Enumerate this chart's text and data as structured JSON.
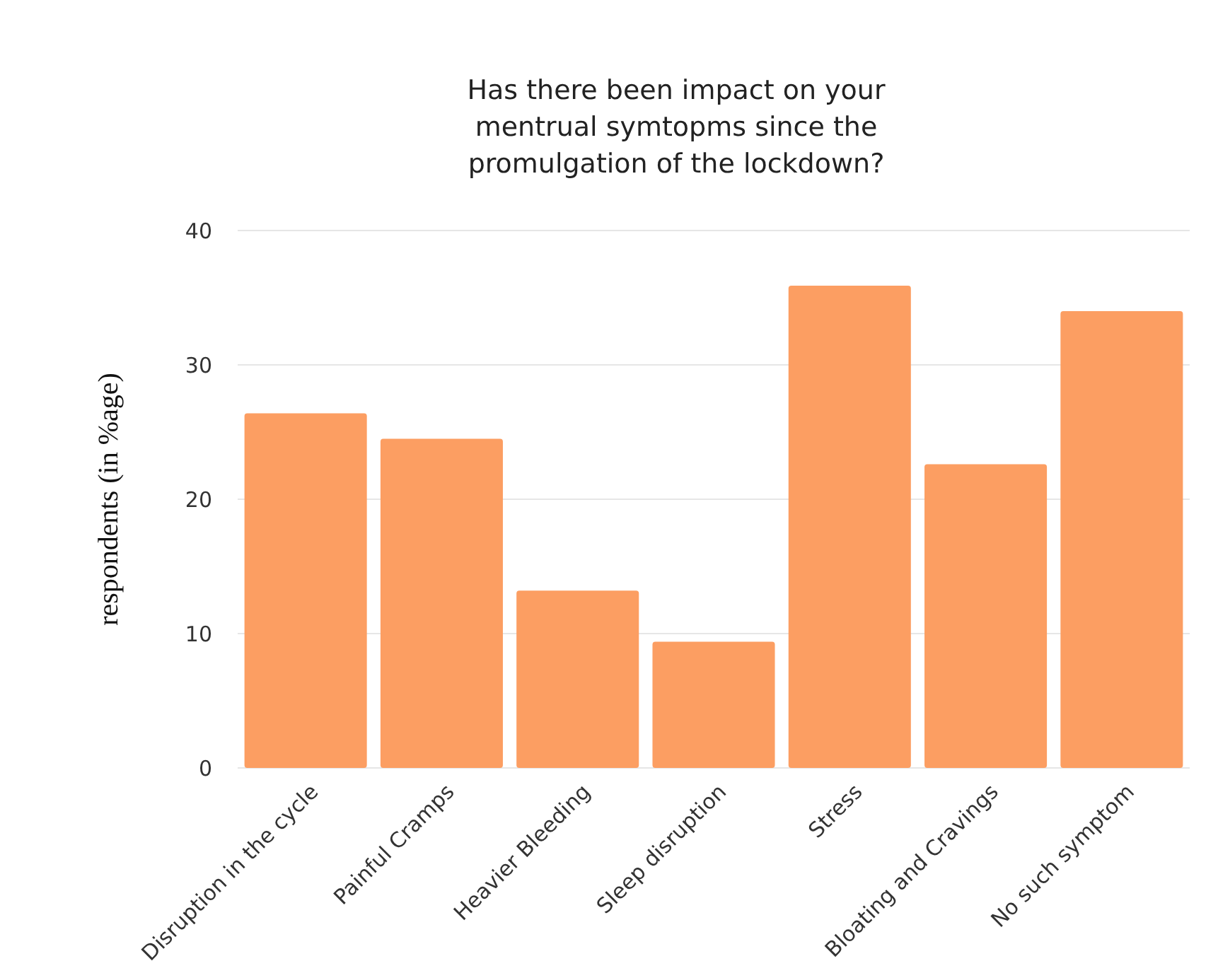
{
  "chart_data": {
    "type": "bar",
    "title": "Has there been impact on your mentrual symtopms since the promulgation of the lockdown?",
    "ylabel": "respondents (in %age)",
    "categories": [
      "Disruption in the cycle",
      "Painful Cramps",
      "Heavier Bleeding",
      "Sleep disruption",
      "Stress",
      "Bloating and Cravings",
      "No such symptom"
    ],
    "values": [
      26.4,
      24.5,
      13.2,
      9.4,
      35.9,
      22.6,
      34.0
    ],
    "color": "#fc9e62",
    "ylim": [
      0,
      40
    ],
    "yticks": [
      0,
      10,
      20,
      30,
      40
    ],
    "grid": "y"
  }
}
